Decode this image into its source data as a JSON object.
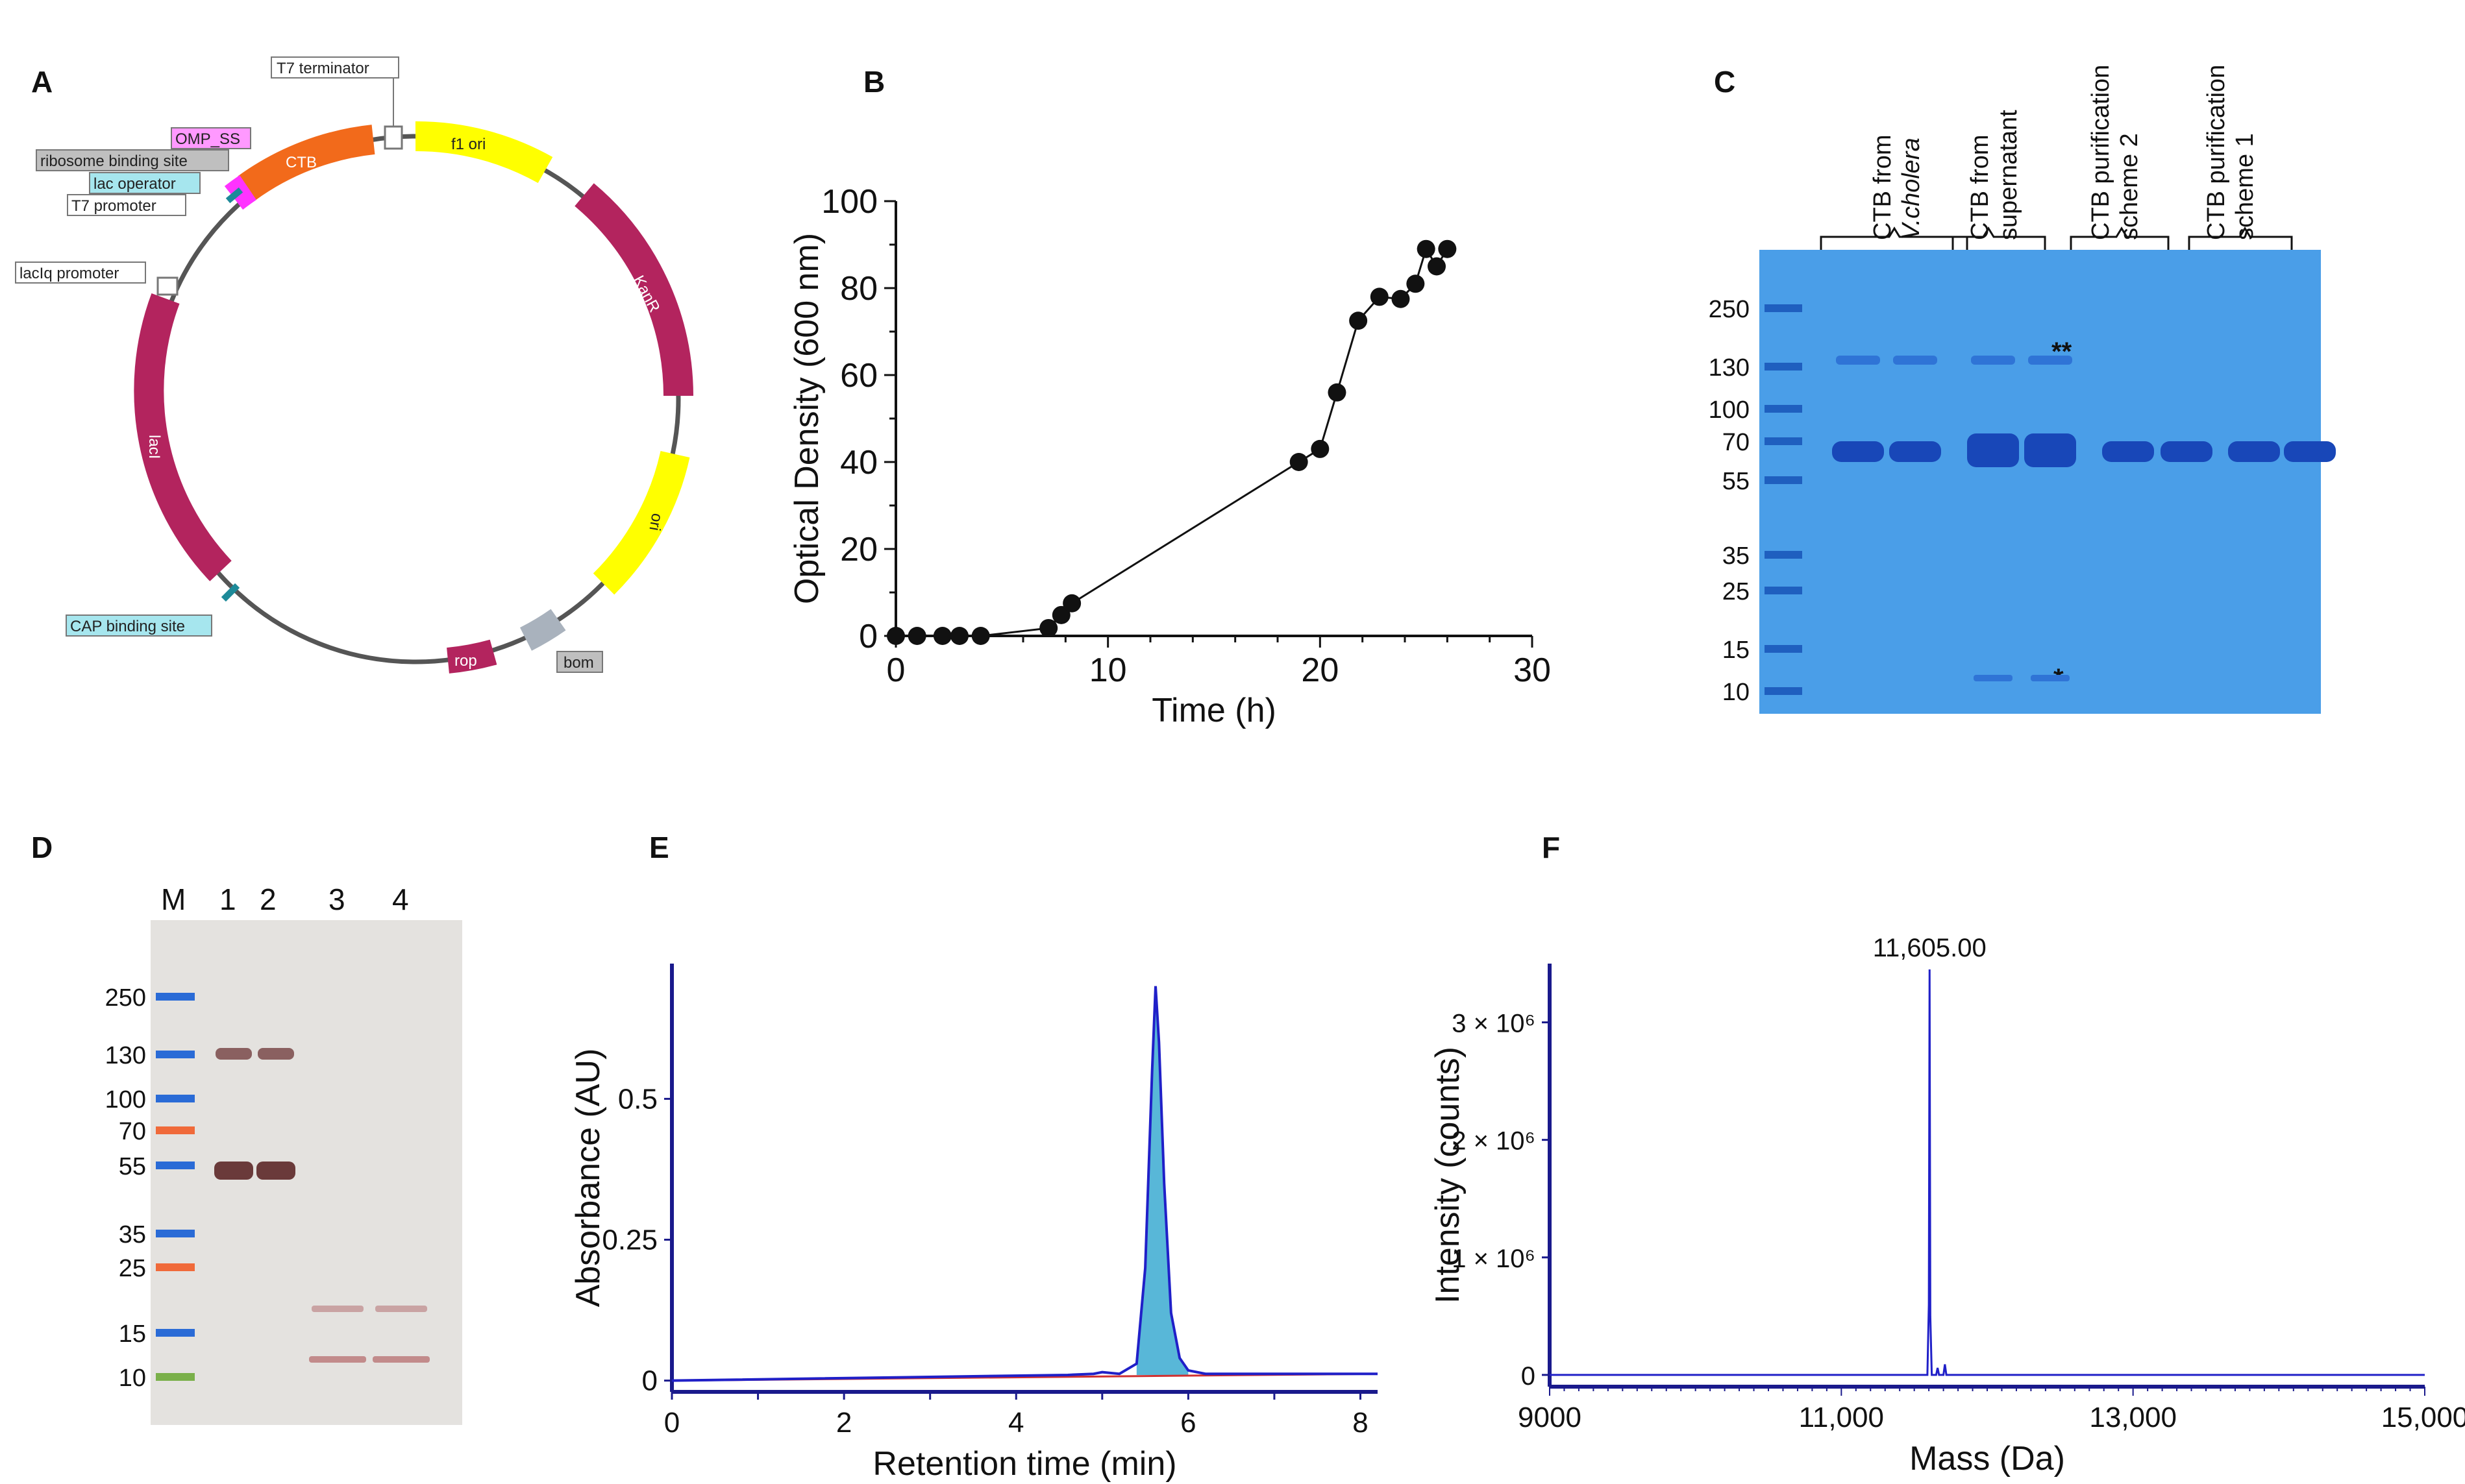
{
  "panels": {
    "A": {
      "label": "A",
      "features": {
        "t7_terminator": "T7 terminator",
        "omp_ss": "OMP_SS",
        "rbs": "ribosome binding site",
        "lac_operator": "lac operator",
        "t7_promoter": "T7 promoter",
        "laciq_promoter": "lacIq promoter",
        "cap_site": "CAP binding site",
        "bom": "bom",
        "ctb": "CTB",
        "f1_ori": "f1 ori",
        "kanr": "KanR",
        "ori": "ori",
        "laci": "lacI",
        "rop": "rop"
      },
      "colors": {
        "ctb": "#f26a1b",
        "omp": "#ff33ff",
        "f1ori": "#ffff00",
        "kanr": "#b3245e",
        "ori": "#ffff00",
        "laci": "#b3245e",
        "rop": "#b3245e",
        "bom": "#a9b2bd",
        "cap": "#1d8a99",
        "teal": "#a6e6ee",
        "pink": "#ff99ff",
        "gray": "#bfbfbf"
      }
    },
    "B": {
      "label": "B"
    },
    "C": {
      "label": "C",
      "lane_groups": [
        {
          "line1": "CTB from",
          "line2": "V.cholera"
        },
        {
          "line1": "CTB from",
          "line2": "supernatant"
        },
        {
          "line1": "CTB  purification",
          "line2": "scheme 2"
        },
        {
          "line1": "CTB purification",
          "line2": "scheme 1"
        }
      ],
      "markers": [
        "250",
        "130",
        "100",
        "70",
        "55",
        "35",
        "25",
        "15",
        "10"
      ],
      "annotations": {
        "double_star": "**",
        "single_star": "*"
      }
    },
    "D": {
      "label": "D",
      "lanes": [
        "M",
        "1",
        "2",
        "3",
        "4"
      ],
      "markers": [
        "250",
        "130",
        "100",
        "70",
        "55",
        "35",
        "25",
        "15",
        "10"
      ]
    },
    "E": {
      "label": "E"
    },
    "F": {
      "label": "F",
      "peak_label": "11,605.00"
    }
  },
  "chart_data": [
    {
      "id": "B",
      "type": "line",
      "title": "",
      "xlabel": "Time (h)",
      "ylabel": "Optical Density (600 nm)",
      "xlim": [
        0,
        30
      ],
      "ylim": [
        0,
        100
      ],
      "xticks": [
        "0",
        "10",
        "20",
        "30"
      ],
      "yticks": [
        "0",
        "20",
        "40",
        "60",
        "80",
        "100"
      ],
      "x": [
        0,
        1,
        2.2,
        3,
        4,
        7.2,
        7.8,
        8.3,
        19,
        20,
        20.8,
        21.8,
        22.8,
        23.8,
        24.5,
        25,
        25.5,
        26
      ],
      "y": [
        0,
        0,
        0,
        0,
        0,
        1.8,
        4.8,
        7.5,
        40,
        43,
        56,
        72.5,
        78,
        77.5,
        81,
        89,
        85,
        89
      ],
      "grid": false
    },
    {
      "id": "E",
      "type": "line",
      "title": "",
      "xlabel": "Retention time (min)",
      "ylabel": "Absorbance (AU)",
      "xlim": [
        0,
        8.2
      ],
      "ylim": [
        -0.02,
        0.74
      ],
      "xticks": [
        "0",
        "2",
        "4",
        "6",
        "8"
      ],
      "yticks": [
        "0",
        "0.25",
        "0.5"
      ],
      "series": [
        {
          "name": "sample",
          "x": [
            0,
            4.6,
            4.9,
            5.0,
            5.2,
            5.4,
            5.5,
            5.58,
            5.62,
            5.66,
            5.72,
            5.8,
            5.9,
            6.0,
            6.2,
            8.2
          ],
          "y": [
            0,
            0.01,
            0.012,
            0.015,
            0.012,
            0.03,
            0.2,
            0.55,
            0.7,
            0.6,
            0.35,
            0.12,
            0.04,
            0.018,
            0.012,
            0.012
          ]
        },
        {
          "name": "baseline",
          "x": [
            0,
            8.2
          ],
          "y": [
            0,
            0.012
          ]
        }
      ],
      "grid": false
    },
    {
      "id": "F",
      "type": "line",
      "title": "",
      "xlabel": "Mass (Da)",
      "ylabel": "Intensity (counts)",
      "xlim": [
        9000,
        15000
      ],
      "ylim": [
        -100000,
        3500000
      ],
      "xticks": [
        "9000",
        "11,000",
        "13,000",
        "15,000"
      ],
      "yticks": [
        "0",
        "1 × 10⁶",
        "2 × 10⁶",
        "3 × 10⁶"
      ],
      "series": [
        {
          "name": "spectrum",
          "x": [
            9000,
            11590,
            11600,
            11605,
            11610,
            11620,
            11650,
            11660,
            11670,
            11700,
            11710,
            11720,
            15000
          ],
          "y": [
            0,
            0,
            600000,
            3450000,
            500000,
            0,
            0,
            60000,
            0,
            0,
            90000,
            0,
            0
          ]
        }
      ],
      "annotations": [
        "11,605.00"
      ],
      "grid": false
    }
  ]
}
